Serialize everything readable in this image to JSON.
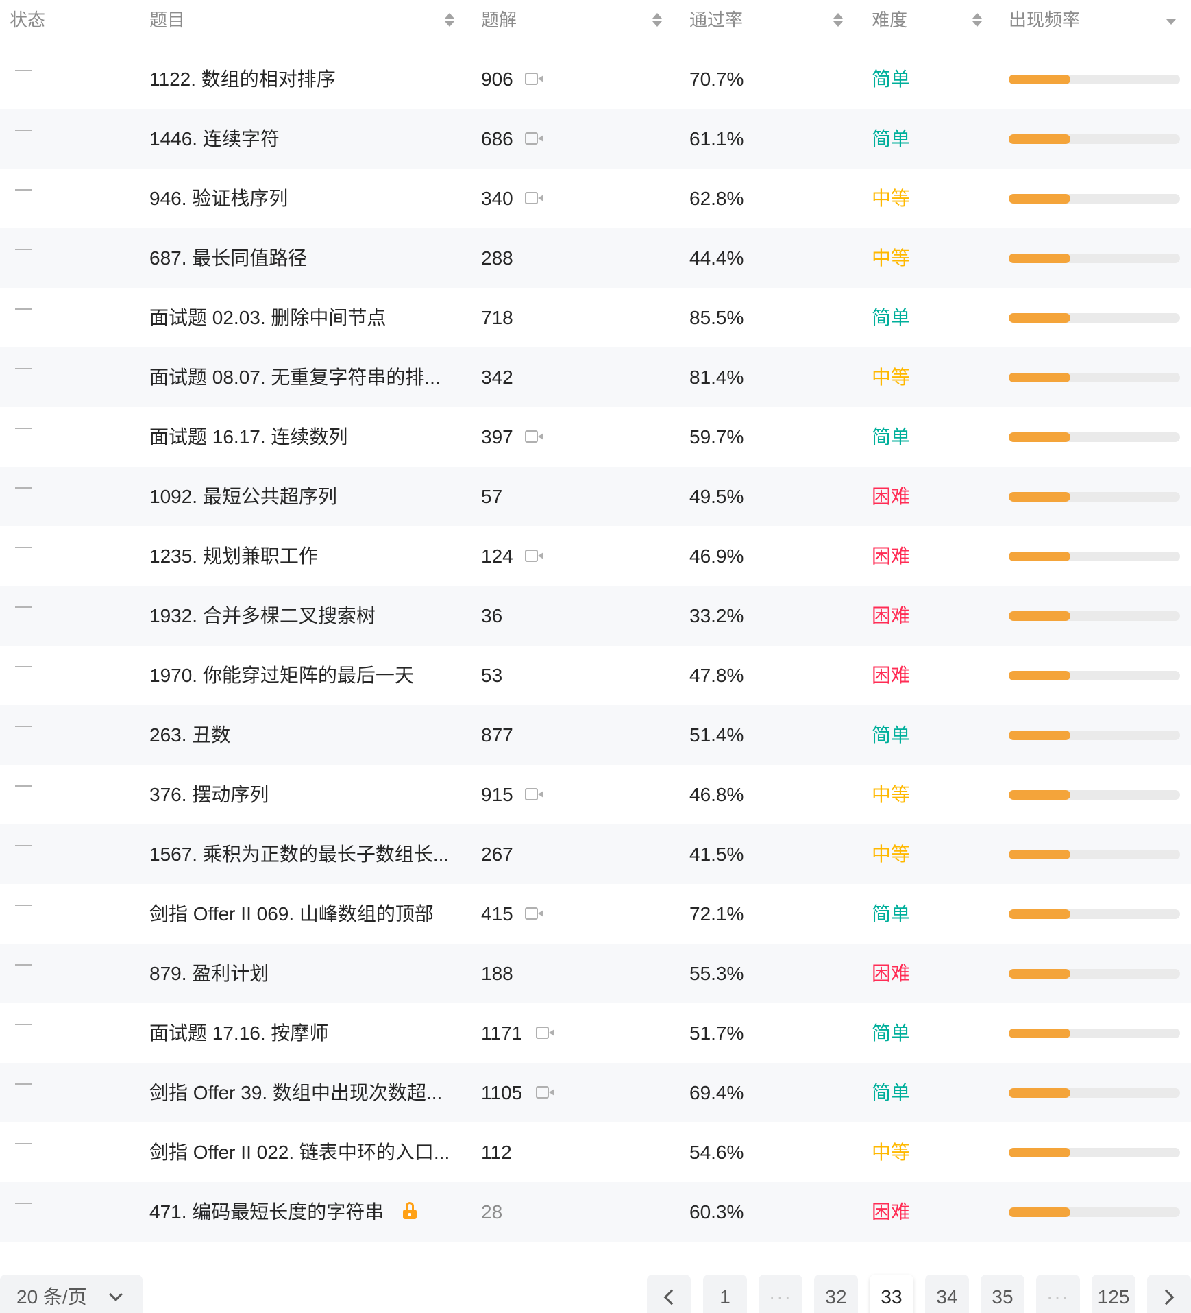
{
  "columns": {
    "status": "状态",
    "title": "题目",
    "solutions": "题解",
    "acceptance": "通过率",
    "difficulty": "难度",
    "frequency": "出现频率"
  },
  "colors": {
    "简单": "#00af9b",
    "中等": "#ffb800",
    "困难": "#ff2d55"
  },
  "rows": [
    {
      "title": "1122. 数组的相对排序",
      "solutions": "906",
      "video": true,
      "rate": "70.7%",
      "difficulty": "简单",
      "frequency": 0.36
    },
    {
      "title": "1446. 连续字符",
      "solutions": "686",
      "video": true,
      "rate": "61.1%",
      "difficulty": "简单",
      "frequency": 0.36
    },
    {
      "title": "946. 验证栈序列",
      "solutions": "340",
      "video": true,
      "rate": "62.8%",
      "difficulty": "中等",
      "frequency": 0.36
    },
    {
      "title": "687. 最长同值路径",
      "solutions": "288",
      "video": false,
      "rate": "44.4%",
      "difficulty": "中等",
      "frequency": 0.36
    },
    {
      "title": "面试题 02.03. 删除中间节点",
      "solutions": "718",
      "video": false,
      "rate": "85.5%",
      "difficulty": "简单",
      "frequency": 0.36
    },
    {
      "title": "面试题 08.07. 无重复字符串的排...",
      "solutions": "342",
      "video": false,
      "rate": "81.4%",
      "difficulty": "中等",
      "frequency": 0.36
    },
    {
      "title": "面试题 16.17. 连续数列",
      "solutions": "397",
      "video": true,
      "rate": "59.7%",
      "difficulty": "简单",
      "frequency": 0.36
    },
    {
      "title": "1092. 最短公共超序列",
      "solutions": "57",
      "video": false,
      "rate": "49.5%",
      "difficulty": "困难",
      "frequency": 0.36
    },
    {
      "title": "1235. 规划兼职工作",
      "solutions": "124",
      "video": true,
      "rate": "46.9%",
      "difficulty": "困难",
      "frequency": 0.36
    },
    {
      "title": "1932. 合并多棵二叉搜索树",
      "solutions": "36",
      "video": false,
      "rate": "33.2%",
      "difficulty": "困难",
      "frequency": 0.36
    },
    {
      "title": "1970. 你能穿过矩阵的最后一天",
      "solutions": "53",
      "video": false,
      "rate": "47.8%",
      "difficulty": "困难",
      "frequency": 0.36
    },
    {
      "title": "263. 丑数",
      "solutions": "877",
      "video": false,
      "rate": "51.4%",
      "difficulty": "简单",
      "frequency": 0.36
    },
    {
      "title": "376. 摆动序列",
      "solutions": "915",
      "video": true,
      "rate": "46.8%",
      "difficulty": "中等",
      "frequency": 0.36
    },
    {
      "title": "1567. 乘积为正数的最长子数组长...",
      "solutions": "267",
      "video": false,
      "rate": "41.5%",
      "difficulty": "中等",
      "frequency": 0.36
    },
    {
      "title": "剑指 Offer II 069. 山峰数组的顶部",
      "solutions": "415",
      "video": true,
      "rate": "72.1%",
      "difficulty": "简单",
      "frequency": 0.36
    },
    {
      "title": "879. 盈利计划",
      "solutions": "188",
      "video": false,
      "rate": "55.3%",
      "difficulty": "困难",
      "frequency": 0.36
    },
    {
      "title": "面试题 17.16. 按摩师",
      "solutions": "1171",
      "video": true,
      "rate": "51.7%",
      "difficulty": "简单",
      "frequency": 0.36
    },
    {
      "title": "剑指 Offer 39. 数组中出现次数超...",
      "solutions": "1105",
      "video": true,
      "rate": "69.4%",
      "difficulty": "简单",
      "frequency": 0.36
    },
    {
      "title": "剑指 Offer II 022. 链表中环的入口...",
      "solutions": "112",
      "video": false,
      "rate": "54.6%",
      "difficulty": "中等",
      "frequency": 0.36
    },
    {
      "title": "471. 编码最短长度的字符串",
      "solutions": "28",
      "video": false,
      "locked": true,
      "rate": "60.3%",
      "difficulty": "困难",
      "frequency": 0.36
    }
  ],
  "pagination": {
    "page_size": "20 条/页",
    "pages": [
      "1",
      "···",
      "32",
      "33",
      "34",
      "35",
      "···",
      "125"
    ],
    "current": "33",
    "prev_icon": "chevron-left-icon",
    "next_icon": "chevron-right-icon"
  }
}
